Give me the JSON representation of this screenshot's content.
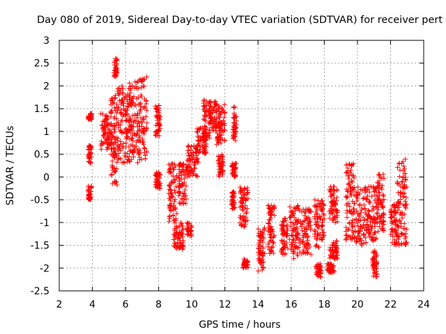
{
  "chart_data": {
    "type": "scatter",
    "title": "Day 080 of 2019, Sidereal Day-to-day VTEC variation (SDTVAR) for receiver pert",
    "xlabel": "GPS time / hours",
    "ylabel": "SDTVAR / TECUs",
    "xlim": [
      2,
      24
    ],
    "ylim": [
      -2.5,
      3
    ],
    "xticks": [
      2,
      4,
      6,
      8,
      10,
      12,
      14,
      16,
      18,
      20,
      22,
      24
    ],
    "yticks": [
      -2.5,
      -2,
      -1.5,
      -1,
      -0.5,
      0,
      0.5,
      1,
      1.5,
      2,
      2.5,
      3
    ],
    "grid": true,
    "marker": "+",
    "marker_color": "#ff0000",
    "clusters": [
      {
        "x": [
          3.75,
          3.95
        ],
        "y": [
          1.25,
          1.4
        ]
      },
      {
        "x": [
          3.75,
          3.95
        ],
        "y": [
          0.3,
          0.7
        ]
      },
      {
        "x": [
          3.75,
          3.95
        ],
        "y": [
          -0.5,
          -0.2
        ]
      },
      {
        "x": [
          4.5,
          5.1
        ],
        "y": [
          0.6,
          1.4
        ]
      },
      {
        "x": [
          5.1,
          5.5
        ],
        "y": [
          -0.2,
          1.8
        ]
      },
      {
        "x": [
          5.3,
          5.5
        ],
        "y": [
          2.2,
          2.6
        ]
      },
      {
        "x": [
          5.5,
          6.1
        ],
        "y": [
          0.3,
          2.0
        ]
      },
      {
        "x": [
          6.1,
          6.6
        ],
        "y": [
          0.3,
          2.1
        ]
      },
      {
        "x": [
          6.6,
          7.3
        ],
        "y": [
          0.3,
          2.2
        ]
      },
      {
        "x": [
          7.8,
          8.1
        ],
        "y": [
          0.9,
          1.6
        ]
      },
      {
        "x": [
          7.8,
          8.1
        ],
        "y": [
          -0.3,
          0.1
        ]
      },
      {
        "x": [
          8.6,
          9.1
        ],
        "y": [
          -1.0,
          0.3
        ]
      },
      {
        "x": [
          8.9,
          9.5
        ],
        "y": [
          -1.6,
          -1.0
        ]
      },
      {
        "x": [
          9.2,
          9.7
        ],
        "y": [
          -0.6,
          0.3
        ]
      },
      {
        "x": [
          9.7,
          10.0
        ],
        "y": [
          -1.3,
          -1.0
        ]
      },
      {
        "x": [
          9.7,
          10.4
        ],
        "y": [
          0.0,
          0.7
        ]
      },
      {
        "x": [
          10.3,
          10.9
        ],
        "y": [
          0.5,
          1.1
        ]
      },
      {
        "x": [
          10.7,
          11.1
        ],
        "y": [
          0.8,
          1.7
        ]
      },
      {
        "x": [
          11.1,
          11.5
        ],
        "y": [
          1.0,
          1.7
        ]
      },
      {
        "x": [
          11.5,
          12.0
        ],
        "y": [
          0.7,
          1.6
        ]
      },
      {
        "x": [
          11.6,
          11.9
        ],
        "y": [
          0.0,
          0.5
        ]
      },
      {
        "x": [
          12.4,
          12.7
        ],
        "y": [
          0.0,
          0.3
        ]
      },
      {
        "x": [
          12.5,
          12.7
        ],
        "y": [
          0.8,
          1.6
        ]
      },
      {
        "x": [
          12.4,
          12.6
        ],
        "y": [
          -0.7,
          -0.3
        ]
      },
      {
        "x": [
          12.9,
          13.4
        ],
        "y": [
          -1.1,
          -0.2
        ]
      },
      {
        "x": [
          13.1,
          13.4
        ],
        "y": [
          -2.0,
          -1.8
        ]
      },
      {
        "x": [
          14.0,
          14.4
        ],
        "y": [
          -2.1,
          -1.1
        ]
      },
      {
        "x": [
          14.6,
          15.0
        ],
        "y": [
          -1.7,
          -0.6
        ]
      },
      {
        "x": [
          15.4,
          15.8
        ],
        "y": [
          -1.7,
          -0.9
        ]
      },
      {
        "x": [
          15.9,
          16.5
        ],
        "y": [
          -1.8,
          -0.6
        ]
      },
      {
        "x": [
          16.5,
          17.2
        ],
        "y": [
          -1.7,
          -0.7
        ]
      },
      {
        "x": [
          17.5,
          17.8
        ],
        "y": [
          -2.2,
          -1.9
        ]
      },
      {
        "x": [
          17.4,
          18.0
        ],
        "y": [
          -1.6,
          -0.5
        ]
      },
      {
        "x": [
          18.2,
          18.6
        ],
        "y": [
          -2.1,
          -1.9
        ]
      },
      {
        "x": [
          18.3,
          18.8
        ],
        "y": [
          -1.8,
          -1.4
        ]
      },
      {
        "x": [
          18.3,
          18.8
        ],
        "y": [
          -1.0,
          -0.2
        ]
      },
      {
        "x": [
          19.3,
          19.8
        ],
        "y": [
          -1.4,
          0.3
        ]
      },
      {
        "x": [
          19.8,
          20.6
        ],
        "y": [
          -1.5,
          -0.2
        ]
      },
      {
        "x": [
          20.6,
          21.2
        ],
        "y": [
          -1.4,
          -0.2
        ]
      },
      {
        "x": [
          20.9,
          21.2
        ],
        "y": [
          -2.2,
          -1.6
        ]
      },
      {
        "x": [
          21.2,
          21.6
        ],
        "y": [
          -1.2,
          0.1
        ]
      },
      {
        "x": [
          22.0,
          22.4
        ],
        "y": [
          -1.5,
          -0.6
        ]
      },
      {
        "x": [
          22.4,
          23.0
        ],
        "y": [
          -1.5,
          0.4
        ]
      }
    ]
  }
}
